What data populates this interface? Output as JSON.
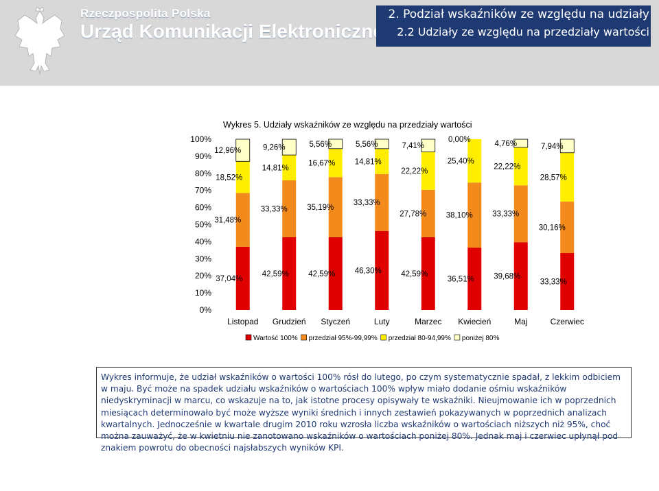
{
  "header": {
    "brand_top": "Rzeczpospolita Polska",
    "brand_main": "Urząd Komunikacji Elektronicznej",
    "section_title": "2. Podział wskaźników ze względu na udziały",
    "subsection_title": "2.2 Udziały ze względu na przedziały wartości",
    "accent_color": "#1f3a73"
  },
  "chart_data": {
    "type": "bar",
    "stacked": true,
    "title": "Wykres 5. Udziały wskaźników ze względu na przedziały wartości",
    "categories": [
      "Listopad",
      "Grudzień",
      "Styczeń",
      "Luty",
      "Marzec",
      "Kwiecień",
      "Maj",
      "Czerwiec"
    ],
    "ylim": [
      0,
      100
    ],
    "yticks": [
      "0%",
      "10%",
      "20%",
      "30%",
      "40%",
      "50%",
      "60%",
      "70%",
      "80%",
      "90%",
      "100%"
    ],
    "legend_position": "bottom",
    "grid": false,
    "series": [
      {
        "name": "Wartość 100%",
        "color": "#e00000",
        "values": [
          37.04,
          42.59,
          42.59,
          46.3,
          42.59,
          36.51,
          39.68,
          33.33
        ],
        "labels": [
          "37,04%",
          "42,59%",
          "42,59%",
          "46,30%",
          "42,59%",
          "36,51%",
          "39,68%",
          "33,33%"
        ]
      },
      {
        "name": "przedział 95%-99,99%",
        "color": "#f28a1c",
        "values": [
          31.48,
          33.33,
          35.19,
          33.33,
          27.78,
          38.1,
          33.33,
          30.16
        ],
        "labels": [
          "31,48%",
          "33,33%",
          "35,19%",
          "33,33%",
          "27,78%",
          "38,10%",
          "33,33%",
          "30,16%"
        ]
      },
      {
        "name": "przedział 80-94,99%",
        "color": "#ffee00",
        "values": [
          18.52,
          14.81,
          16.67,
          14.81,
          22.22,
          25.4,
          22.22,
          28.57
        ],
        "labels": [
          "18,52%",
          "14,81%",
          "16,67%",
          "14,81%",
          "22,22%",
          "25,40%",
          "22,22%",
          "28,57%"
        ]
      },
      {
        "name": "poniżej 80%",
        "color": "#ffffc8",
        "values": [
          12.96,
          9.26,
          5.56,
          5.56,
          7.41,
          0.0,
          4.76,
          7.94
        ],
        "labels": [
          "12,96%",
          "9,26%",
          "5,56%",
          "5,56%",
          "7,41%",
          "0,00%",
          "4,76%",
          "7,94%"
        ]
      }
    ]
  },
  "description": "Wykres informuje, że udział wskaźników o wartości 100% rósł do lutego, po czym systematycznie spadał, z lekkim odbiciem w maju. Być może na spadek udziału wskaźników o wartościach 100% wpływ miało dodanie ośmiu wskaźników niedyskryminacji w marcu, co wskazuje na to, jak istotne procesy opisywały te wskaźniki. Nieujmowanie ich w poprzednich miesiącach determinowało być może wyższe wyniki średnich i innych zestawień pokazywanych w poprzednich analizach kwartalnych. Jednocześnie w kwartale drugim 2010 roku wzrosła liczba wskaźników o wartościach niższych niż 95%, choć można zauważyć, że w kwietniu nie zanotowano wskaźników o wartościach poniżej 80%. Jednak maj i czerwiec upłynął pod znakiem powrotu do obecności najsłabszych wyników KPI."
}
